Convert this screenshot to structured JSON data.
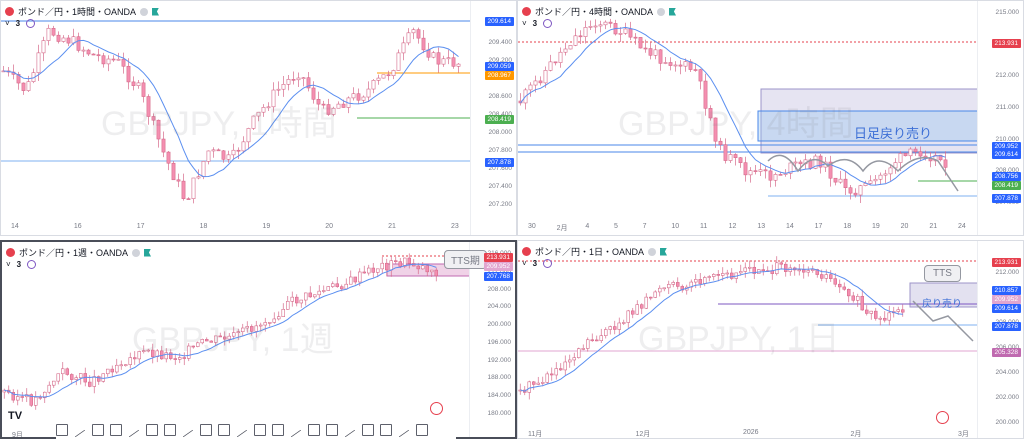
{
  "panels": {
    "h1": {
      "title": "ポンド／円・1時間・OANDA",
      "indicator_count": "3",
      "watermark": "GBPJPY, 1時間",
      "x_ticks": [
        "14",
        "16",
        "17",
        "18",
        "19",
        "20",
        "21",
        "23"
      ],
      "y_ticks": [
        "209.600",
        "209.400",
        "209.200",
        "208.800",
        "208.600",
        "208.400",
        "208.000",
        "207.800",
        "207.600",
        "207.400",
        "207.200"
      ],
      "tags": {
        "top": "209.614",
        "price1": "209.059",
        "price2": "208.967",
        "green": "208.419",
        "low": "207.878"
      }
    },
    "h4": {
      "title": "ポンド／円・4時間・OANDA",
      "indicator_count": "3",
      "watermark": "GBPJPY, 4時間",
      "x_ticks": [
        "30",
        "2月",
        "4",
        "5",
        "7",
        "10",
        "11",
        "12",
        "13",
        "14",
        "17",
        "18",
        "19",
        "20",
        "21",
        "24"
      ],
      "y_ticks": [
        "215.000",
        "214.000",
        "212.000",
        "211.000",
        "210.000",
        "208.000",
        "207.000"
      ],
      "tags": {
        "red": "213.931",
        "blue1": "209.952",
        "blue2": "209.614",
        "price": "208.756",
        "green": "208.419",
        "low": "207.878"
      },
      "box_label": "日足戻り売り"
    },
    "w1": {
      "title": "ポンド／円・1週・OANDA",
      "indicator_count": "3",
      "watermark": "GBPJPY, 1週",
      "x_ticks": [
        "9月"
      ],
      "y_ticks": [
        "216.000",
        "212.000",
        "208.000",
        "204.000",
        "200.000",
        "196.000",
        "192.000",
        "188.000",
        "184.000",
        "180.000"
      ],
      "tags": {
        "red": "213.931",
        "blue1": "209.952",
        "price": "207.768"
      },
      "tts_label": "TTS期"
    },
    "d1": {
      "title": "ポンド／円・1日・OANDA",
      "indicator_count": "3",
      "watermark": "GBPJPY, 1日",
      "x_ticks": [
        "11月",
        "12月",
        "2026",
        "2月",
        "3月"
      ],
      "y_ticks": [
        "212.000",
        "210.000",
        "208.000",
        "206.000",
        "204.000",
        "202.000",
        "200.000"
      ],
      "tags": {
        "red": "213.931",
        "blue1": "210.857",
        "blue2": "209.952",
        "blue3": "209.614",
        "price": "207.878",
        "pink": "205.328"
      },
      "tts_label": "TTS",
      "box_label": "戻り売り"
    }
  },
  "toolbar": {
    "logo": "TV",
    "tools": [
      "crosshair-tool",
      "plus-tool",
      "rectangle-tool",
      "path-tool",
      "box-tool",
      "horizontal-ray-tool",
      "trend-line-tool",
      "ray-tool",
      "brush-tool",
      "arrow-tool",
      "pen-tool",
      "highlight-tool",
      "down-arrow-tool",
      "up-arrow-tool",
      "long-position-tool",
      "short-position-tool",
      "price-range-tool",
      "date-range-tool",
      "text-tool",
      "table-tool",
      "shape-tool"
    ]
  },
  "colors": {
    "up_candle": "#ffffff",
    "down_candle": "#f48fb1",
    "ma_line": "#5b8ff0",
    "red_dotted": "#e6404e",
    "blue_line": "#4a87e8",
    "green_line": "#4caf50",
    "orange_line": "#ff9800",
    "box_fill": "#b8b3d9"
  }
}
